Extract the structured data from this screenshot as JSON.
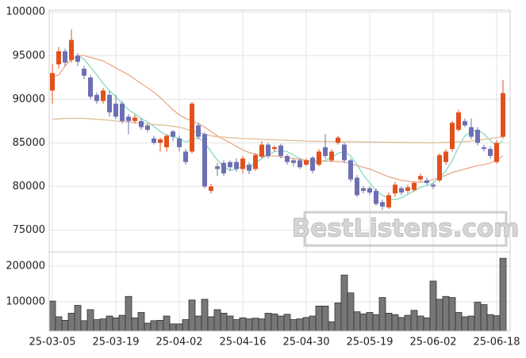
{
  "chart_data": [
    {
      "type": "candlestick",
      "watermark": "BestListens.com",
      "ylim": [
        72500,
        100200
      ],
      "yticks": [
        75000,
        80000,
        85000,
        90000,
        95000,
        100000
      ],
      "grid": true,
      "up_color": "#e2511c",
      "down_color": "#6c70b2",
      "open": [
        91000,
        94000,
        95500,
        94500,
        95000,
        93500,
        92500,
        90500,
        89800,
        90500,
        89500,
        89500,
        88000,
        87500,
        87500,
        87000,
        85500,
        85000,
        84500,
        86300,
        85500,
        84000,
        84000,
        87000,
        86000,
        79500,
        82300,
        82700,
        82800,
        82800,
        82000,
        82500,
        82000,
        83400,
        84800,
        84300,
        84700,
        83500,
        83000,
        83000,
        82500,
        83300,
        82500,
        84500,
        83000,
        85000,
        84800,
        83000,
        81000,
        79800,
        79800,
        79500,
        78200,
        77600,
        79200,
        79800,
        79500,
        79600,
        80800,
        80700,
        80200,
        80700,
        82800,
        84300,
        86500,
        87500,
        86800,
        86500,
        84500,
        84300,
        82800,
        85700
      ],
      "high": [
        94000,
        96000,
        95800,
        98000,
        95300,
        93800,
        92800,
        90800,
        91300,
        91000,
        90500,
        89800,
        88300,
        88200,
        87800,
        87200,
        85800,
        85600,
        86000,
        86500,
        85800,
        84300,
        89700,
        87300,
        86200,
        80300,
        82700,
        83000,
        83000,
        83200,
        83500,
        82800,
        83800,
        85200,
        85000,
        84700,
        84900,
        83700,
        83200,
        83200,
        83200,
        83500,
        84300,
        86000,
        84300,
        85800,
        85000,
        83200,
        81300,
        80000,
        80000,
        79800,
        78500,
        79300,
        80500,
        80000,
        80200,
        80600,
        81500,
        81000,
        80400,
        83800,
        84300,
        87500,
        88800,
        87800,
        87800,
        86800,
        84800,
        84600,
        85300,
        92200
      ],
      "low": [
        89500,
        93500,
        93800,
        94200,
        93800,
        92300,
        90000,
        89500,
        89500,
        88000,
        87700,
        87200,
        86000,
        87200,
        86500,
        86200,
        84800,
        84000,
        84000,
        85200,
        84000,
        82500,
        83800,
        85400,
        79800,
        79200,
        81200,
        81200,
        81800,
        81700,
        81500,
        81400,
        81800,
        83200,
        83200,
        84000,
        83200,
        82500,
        82300,
        82000,
        82300,
        81500,
        82300,
        83200,
        82800,
        84800,
        82700,
        80500,
        78800,
        79200,
        79000,
        77800,
        77300,
        77400,
        78800,
        79000,
        79200,
        79400,
        80600,
        80200,
        79700,
        80500,
        82500,
        84000,
        86300,
        86800,
        85400,
        84700,
        84000,
        83200,
        82600,
        85500
      ],
      "close": [
        93000,
        95500,
        94200,
        96800,
        94300,
        92700,
        90300,
        89800,
        91000,
        88500,
        88000,
        87500,
        87500,
        87900,
        86800,
        86500,
        85000,
        85400,
        85800,
        85700,
        84500,
        82800,
        89500,
        85700,
        80000,
        80000,
        82000,
        81500,
        82200,
        82000,
        83200,
        81800,
        83600,
        84800,
        83500,
        84500,
        83500,
        82800,
        82700,
        82200,
        83000,
        81800,
        84000,
        83500,
        84000,
        85600,
        83000,
        80800,
        79000,
        79500,
        79300,
        78000,
        77700,
        79000,
        80200,
        79300,
        79900,
        80400,
        81200,
        80400,
        80000,
        83600,
        84000,
        87300,
        88500,
        87000,
        85700,
        85000,
        84300,
        83500,
        85000,
        90700
      ],
      "series": [
        {
          "color": "#88d8c4",
          "values": [
            null,
            null,
            null,
            94500,
            95000,
            94600,
            93700,
            92800,
            91800,
            91000,
            90300,
            89500,
            88800,
            88300,
            87800,
            87400,
            86900,
            86300,
            85900,
            85700,
            85500,
            85100,
            85400,
            85600,
            85000,
            84000,
            83000,
            82300,
            81800,
            82000,
            82300,
            82300,
            82700,
            83200,
            83600,
            84000,
            84100,
            84000,
            83600,
            83200,
            82900,
            82700,
            82800,
            83000,
            83300,
            83800,
            84000,
            83500,
            82500,
            81300,
            80400,
            79500,
            79000,
            78600,
            78500,
            78700,
            79100,
            79500,
            79900,
            80100,
            80400,
            81000,
            81800,
            83000,
            84500,
            85800,
            86300,
            86500,
            86000,
            85300,
            84600,
            85300
          ]
        },
        {
          "color": "#eaa886",
          "values": [
            92500,
            92800,
            93800,
            94600,
            95000,
            95000,
            94800,
            94600,
            94400,
            94000,
            93600,
            93200,
            92800,
            92300,
            91800,
            91300,
            90800,
            90200,
            89500,
            88800,
            88200,
            87800,
            87500,
            87200,
            86800,
            86300,
            85800,
            85400,
            85000,
            84600,
            84200,
            83900,
            83700,
            83600,
            83500,
            83500,
            83400,
            83300,
            83200,
            83100,
            83000,
            82950,
            82900,
            82900,
            82900,
            82850,
            82800,
            82600,
            82400,
            82200,
            82000,
            81700,
            81400,
            81100,
            80900,
            80700,
            80600,
            80500,
            80500,
            80600,
            80800,
            81000,
            81300,
            81600,
            81800,
            82000,
            82200,
            82400,
            82500,
            82700,
            83000,
            83500
          ]
        },
        {
          "color": "#e0bd98",
          "values": [
            87700,
            87750,
            87800,
            87800,
            87800,
            87800,
            87750,
            87700,
            87650,
            87600,
            87500,
            87450,
            87400,
            87300,
            87250,
            87200,
            87100,
            87050,
            87000,
            86900,
            86800,
            86600,
            86400,
            86200,
            86000,
            85800,
            85700,
            85650,
            85600,
            85550,
            85500,
            85470,
            85440,
            85410,
            85380,
            85350,
            85320,
            85290,
            85260,
            85230,
            85200,
            85190,
            85180,
            85170,
            85160,
            85150,
            85140,
            85130,
            85120,
            85110,
            85100,
            85090,
            85080,
            85070,
            85060,
            85050,
            85040,
            85030,
            85020,
            85010,
            85000,
            85030,
            85060,
            85090,
            85120,
            85150,
            85200,
            85300,
            85400,
            85500,
            85600,
            85700
          ]
        }
      ]
    },
    {
      "type": "bar",
      "color": "#777777",
      "ylim": [
        17800,
        240000
      ],
      "yticks": [
        100000,
        200000
      ],
      "grid": true,
      "categories": [
        "25-03-05",
        null,
        null,
        null,
        null,
        null,
        null,
        null,
        null,
        null,
        "25-03-19",
        null,
        null,
        null,
        null,
        null,
        null,
        null,
        null,
        null,
        "25-04-02",
        null,
        null,
        null,
        null,
        null,
        null,
        null,
        null,
        null,
        "25-04-16",
        null,
        null,
        null,
        null,
        null,
        null,
        null,
        null,
        null,
        "25-04-30",
        null,
        null,
        null,
        null,
        null,
        null,
        null,
        null,
        null,
        "25-05-19",
        null,
        null,
        null,
        null,
        null,
        null,
        null,
        null,
        null,
        "25-06-02",
        null,
        null,
        null,
        null,
        null,
        null,
        null,
        null,
        null,
        "25-06-18",
        null
      ],
      "values": [
        102000,
        58000,
        48000,
        68000,
        90000,
        47000,
        78000,
        50000,
        52000,
        60000,
        55000,
        62000,
        115000,
        55000,
        70000,
        40000,
        47000,
        48000,
        60000,
        38000,
        38000,
        50000,
        105000,
        60000,
        107000,
        58000,
        78000,
        68000,
        60000,
        50000,
        55000,
        52000,
        54000,
        52000,
        68000,
        66000,
        60000,
        65000,
        50000,
        52000,
        56000,
        60000,
        88000,
        88000,
        44000,
        97000,
        175000,
        125000,
        72000,
        66000,
        70000,
        64000,
        112000,
        68000,
        64000,
        56000,
        62000,
        76000,
        60000,
        55000,
        158000,
        107000,
        115000,
        112000,
        70000,
        58000,
        60000,
        99000,
        92000,
        64000,
        61000,
        222000
      ]
    }
  ]
}
